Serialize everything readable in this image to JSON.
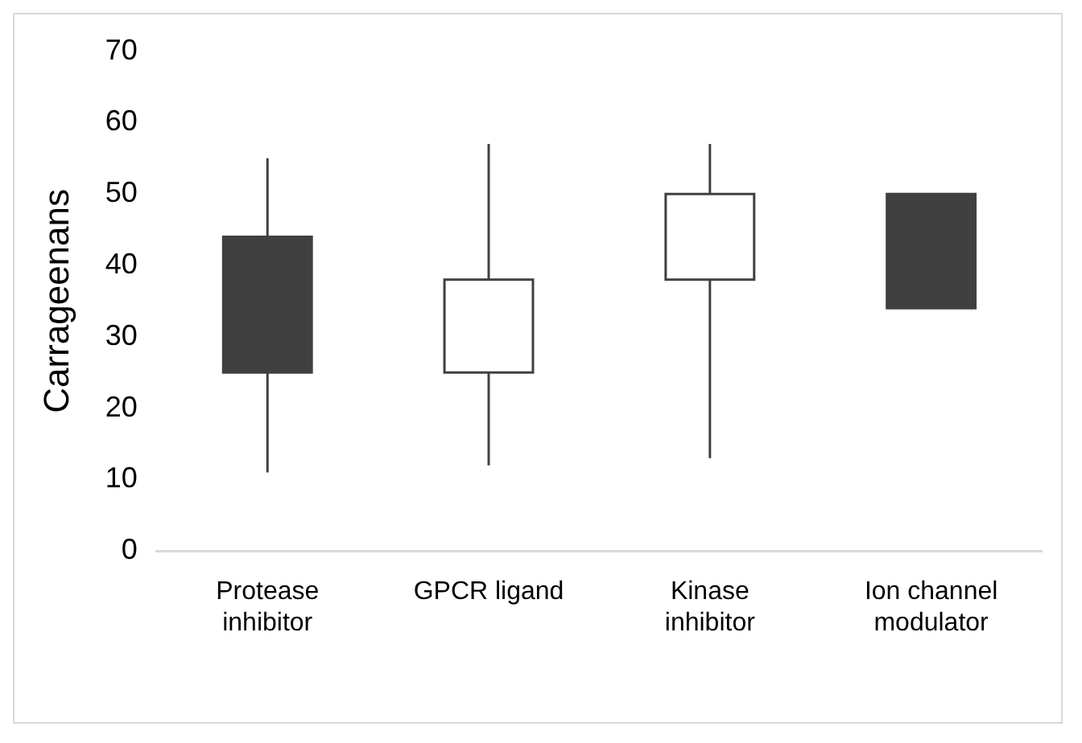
{
  "chart_data": {
    "type": "candlestick",
    "ylabel": "Carrageenans",
    "categories": [
      "Protease inhibitor",
      "GPCR ligand",
      "Kinase inhibitor",
      "Ion channel modulator"
    ],
    "ohlc": [
      [
        44,
        55,
        11,
        25
      ],
      [
        25,
        57,
        12,
        38
      ],
      [
        38,
        57,
        13,
        50
      ],
      [
        50,
        50,
        34,
        34
      ]
    ],
    "colors": [
      "#404040",
      "#ffffff",
      "#ffffff",
      "#404040"
    ],
    "ylim": [
      0,
      70
    ],
    "yticks": [
      0,
      10,
      20,
      30,
      40,
      50,
      60,
      70
    ],
    "grid": false,
    "legend": false
  }
}
